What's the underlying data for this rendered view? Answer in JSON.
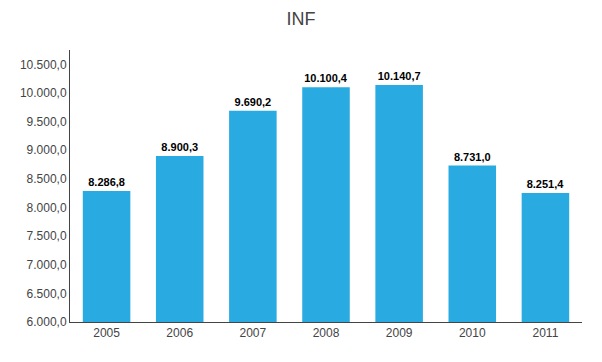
{
  "chart_data": {
    "type": "bar",
    "title": "INF",
    "categories": [
      "2005",
      "2006",
      "2007",
      "2008",
      "2009",
      "2010",
      "2011"
    ],
    "values": [
      8286.8,
      8900.3,
      9690.2,
      10100.4,
      10140.7,
      8731.0,
      8251.4
    ],
    "value_labels": [
      "8.286,8",
      "8.900,3",
      "9.690,2",
      "10.100,4",
      "10.140,7",
      "8.731,0",
      "8.251,4"
    ],
    "data_labels": true,
    "color": "#29ABE2",
    "ylim": [
      6000,
      10750
    ],
    "yticks": [
      {
        "value": 6000,
        "label": "6.000,0"
      },
      {
        "value": 6500,
        "label": "6.500,0"
      },
      {
        "value": 7000,
        "label": "7.000,0"
      },
      {
        "value": 7500,
        "label": "7.500,0"
      },
      {
        "value": 8000,
        "label": "8.000,0"
      },
      {
        "value": 8500,
        "label": "8.500,0"
      },
      {
        "value": 9000,
        "label": "9.000,0"
      },
      {
        "value": 9500,
        "label": "9.500,0"
      },
      {
        "value": 10000,
        "label": "10.000,0"
      },
      {
        "value": 10500,
        "label": "10.500,0"
      }
    ],
    "grid": false
  }
}
